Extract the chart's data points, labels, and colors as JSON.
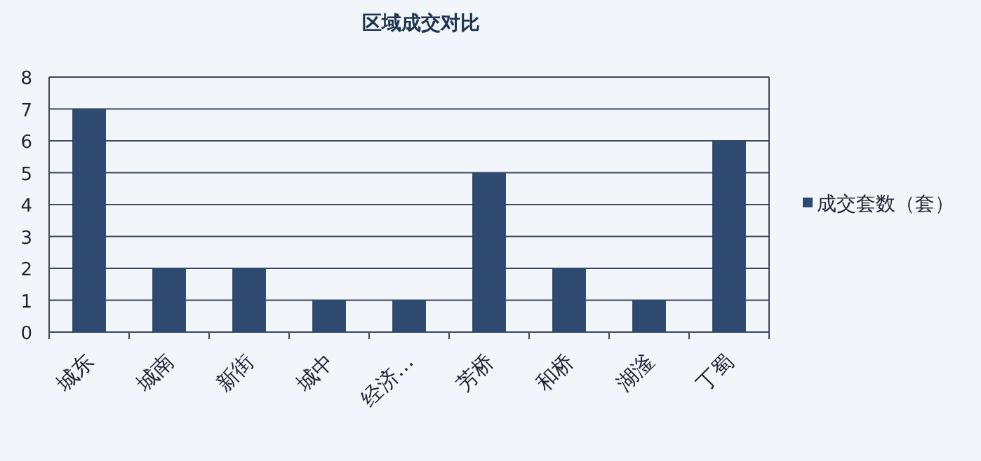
{
  "chart_data": {
    "type": "bar",
    "title": "区域成交对比",
    "categories": [
      "城东",
      "城南",
      "新街",
      "城中",
      "经济…",
      "芳桥",
      "和桥",
      "湖滏",
      "丁蜀"
    ],
    "series": [
      {
        "name": "成交套数（套）",
        "color": "#2f4a70",
        "values": [
          7,
          2,
          2,
          1,
          1,
          5,
          2,
          1,
          6
        ]
      }
    ],
    "ylim": [
      0,
      8
    ],
    "yticks": [
      0,
      1,
      2,
      3,
      4,
      5,
      6,
      7,
      8
    ],
    "grid": "y",
    "legend": "right"
  }
}
